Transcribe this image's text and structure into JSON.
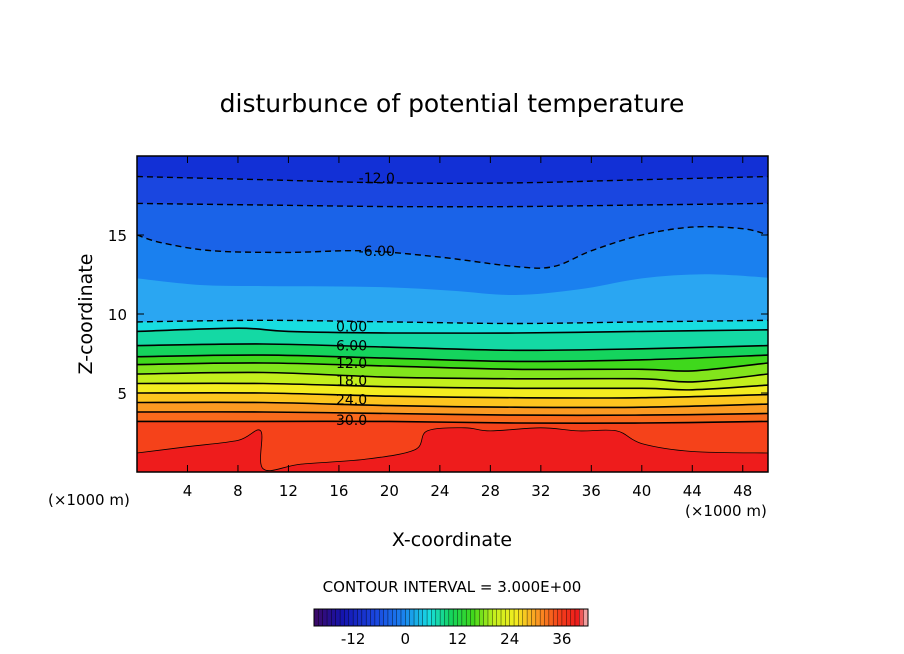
{
  "chart_data": {
    "type": "heatmap",
    "title": "disturbunce of potential temperature",
    "xlabel": "X-coordinate",
    "ylabel": "Z-coordinate",
    "x_unit": "(×1000 m)",
    "z_unit": "(×1000 m)",
    "xlim": [
      0,
      50
    ],
    "ylim": [
      0,
      20
    ],
    "x_ticks": [
      "4",
      "8",
      "12",
      "16",
      "20",
      "24",
      "28",
      "32",
      "36",
      "40",
      "44",
      "48"
    ],
    "y_ticks": [
      "5",
      "10",
      "15"
    ],
    "contour_interval_text": "CONTOUR INTERVAL = 3.000E+00",
    "colorbar": {
      "range": [
        -21,
        42
      ],
      "ticks": [
        "-12",
        "0",
        "12",
        "24",
        "36"
      ]
    },
    "contour_labels": [
      {
        "text": "-12.0",
        "x": 19,
        "z": 18.6
      },
      {
        "text": "-6.00",
        "x": 19,
        "z": 14.0
      },
      {
        "text": "0.00",
        "x": 17,
        "z": 9.2
      },
      {
        "text": "6.00",
        "x": 17,
        "z": 8.0
      },
      {
        "text": "12.0",
        "x": 17,
        "z": 6.9
      },
      {
        "text": "18.0",
        "x": 17,
        "z": 5.8
      },
      {
        "text": "24.0",
        "x": 17,
        "z": 4.6
      },
      {
        "text": "30.0",
        "x": 17,
        "z": 3.3
      }
    ],
    "isotherms": [
      {
        "value": -12,
        "style": "dashed",
        "points": [
          [
            0,
            18.7
          ],
          [
            10,
            18.5
          ],
          [
            20,
            18.3
          ],
          [
            30,
            18.3
          ],
          [
            40,
            18.5
          ],
          [
            50,
            18.7
          ]
        ]
      },
      {
        "value": -9,
        "style": "dashed",
        "points": [
          [
            0,
            17.0
          ],
          [
            10,
            16.9
          ],
          [
            20,
            16.8
          ],
          [
            30,
            16.8
          ],
          [
            40,
            16.9
          ],
          [
            50,
            17.0
          ]
        ]
      },
      {
        "value": -6,
        "style": "dashed",
        "points": [
          [
            0,
            15.0
          ],
          [
            2,
            14.5
          ],
          [
            6,
            14.0
          ],
          [
            12,
            13.9
          ],
          [
            18,
            14.0
          ],
          [
            24,
            13.6
          ],
          [
            30,
            13.0
          ],
          [
            33,
            13.0
          ],
          [
            36,
            14.0
          ],
          [
            40,
            15.0
          ],
          [
            44,
            15.5
          ],
          [
            48,
            15.4
          ],
          [
            50,
            15.0
          ]
        ]
      },
      {
        "value": 0,
        "style": "dashed",
        "points": [
          [
            0,
            9.5
          ],
          [
            10,
            9.6
          ],
          [
            20,
            9.5
          ],
          [
            30,
            9.4
          ],
          [
            40,
            9.5
          ],
          [
            50,
            9.6
          ]
        ]
      },
      {
        "value": 3,
        "style": "solid",
        "points": [
          [
            0,
            8.9
          ],
          [
            8,
            9.1
          ],
          [
            12,
            8.9
          ],
          [
            20,
            8.8
          ],
          [
            30,
            8.8
          ],
          [
            40,
            8.9
          ],
          [
            50,
            9.0
          ]
        ]
      },
      {
        "value": 6,
        "style": "solid",
        "points": [
          [
            0,
            8.0
          ],
          [
            10,
            8.1
          ],
          [
            20,
            7.9
          ],
          [
            30,
            7.7
          ],
          [
            40,
            7.8
          ],
          [
            50,
            8.0
          ]
        ]
      },
      {
        "value": 9,
        "style": "solid",
        "points": [
          [
            0,
            7.3
          ],
          [
            10,
            7.4
          ],
          [
            20,
            7.2
          ],
          [
            30,
            7.0
          ],
          [
            40,
            7.1
          ],
          [
            50,
            7.4
          ]
        ]
      },
      {
        "value": 12,
        "style": "solid",
        "points": [
          [
            0,
            6.8
          ],
          [
            10,
            6.9
          ],
          [
            20,
            6.7
          ],
          [
            30,
            6.5
          ],
          [
            40,
            6.5
          ],
          [
            44,
            6.4
          ],
          [
            50,
            6.9
          ]
        ]
      },
      {
        "value": 15,
        "style": "solid",
        "points": [
          [
            0,
            6.2
          ],
          [
            10,
            6.3
          ],
          [
            20,
            6.0
          ],
          [
            30,
            5.9
          ],
          [
            40,
            5.9
          ],
          [
            44,
            5.7
          ],
          [
            50,
            6.2
          ]
        ]
      },
      {
        "value": 18,
        "style": "solid",
        "points": [
          [
            0,
            5.6
          ],
          [
            10,
            5.6
          ],
          [
            20,
            5.4
          ],
          [
            30,
            5.3
          ],
          [
            40,
            5.3
          ],
          [
            44,
            5.2
          ],
          [
            50,
            5.5
          ]
        ]
      },
      {
        "value": 21,
        "style": "solid",
        "points": [
          [
            0,
            5.0
          ],
          [
            10,
            5.0
          ],
          [
            20,
            4.8
          ],
          [
            30,
            4.7
          ],
          [
            40,
            4.7
          ],
          [
            50,
            4.9
          ]
        ]
      },
      {
        "value": 24,
        "style": "solid",
        "points": [
          [
            0,
            4.4
          ],
          [
            10,
            4.4
          ],
          [
            20,
            4.2
          ],
          [
            30,
            4.1
          ],
          [
            40,
            4.1
          ],
          [
            50,
            4.3
          ]
        ]
      },
      {
        "value": 27,
        "style": "solid",
        "points": [
          [
            0,
            3.8
          ],
          [
            10,
            3.8
          ],
          [
            20,
            3.7
          ],
          [
            30,
            3.6
          ],
          [
            40,
            3.6
          ],
          [
            50,
            3.7
          ]
        ]
      },
      {
        "value": 30,
        "style": "solid",
        "points": [
          [
            0,
            3.2
          ],
          [
            10,
            3.2
          ],
          [
            20,
            3.2
          ],
          [
            30,
            3.1
          ],
          [
            40,
            3.1
          ],
          [
            50,
            3.2
          ]
        ]
      },
      {
        "value": 33,
        "style": "thin",
        "points": [
          [
            0,
            1.2
          ],
          [
            4,
            1.6
          ],
          [
            8,
            2.0
          ],
          [
            9.8,
            2.6
          ],
          [
            10,
            0.2
          ],
          [
            13,
            0.5
          ],
          [
            18,
            0.8
          ],
          [
            22,
            1.4
          ],
          [
            23,
            2.6
          ],
          [
            26,
            2.8
          ],
          [
            28,
            2.6
          ],
          [
            32,
            2.8
          ],
          [
            35,
            2.6
          ],
          [
            38,
            2.6
          ],
          [
            40,
            1.8
          ],
          [
            44,
            1.3
          ],
          [
            50,
            1.2
          ]
        ]
      }
    ],
    "color_bands": [
      {
        "value": 33,
        "color": "#ee1c1c"
      },
      {
        "value": 30,
        "color": "#f5421a"
      },
      {
        "value": 27,
        "color": "#f96a1c"
      },
      {
        "value": 24,
        "color": "#fb9a22"
      },
      {
        "value": 21,
        "color": "#fdc51f"
      },
      {
        "value": 18,
        "color": "#f4ec20"
      },
      {
        "value": 15,
        "color": "#c4ef1d"
      },
      {
        "value": 12,
        "color": "#82e51c"
      },
      {
        "value": 9,
        "color": "#3fd81c"
      },
      {
        "value": 6,
        "color": "#15d45d"
      },
      {
        "value": 3,
        "color": "#14d9a4"
      },
      {
        "value": 0,
        "color": "#18dde0"
      },
      {
        "value": -3,
        "color": "#2aa6f2"
      },
      {
        "value": -6,
        "color": "#1a80ef"
      },
      {
        "value": -9,
        "color": "#1a63e8"
      },
      {
        "value": -12,
        "color": "#1a46e0"
      },
      {
        "value": -15,
        "color": "#1230d6"
      }
    ]
  }
}
